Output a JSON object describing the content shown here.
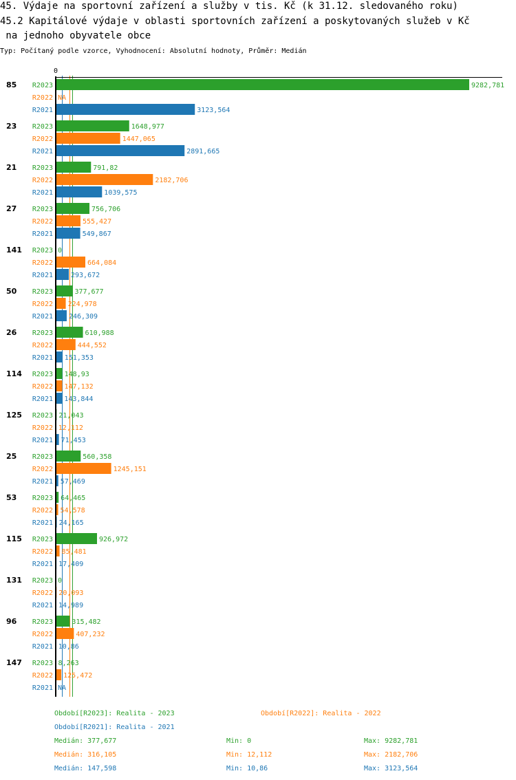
{
  "header": {
    "title_line1": "45. Výdaje na sportovní zařízení a služby v tis. Kč (k 31.12. sledovaného roku)",
    "title_line2": "45.2 Kapitálové výdaje v oblasti sportovních zařízení a poskytovaných služeb v Kč",
    "title_line3": " na jednoho obyvatele obce",
    "subtitle": "Typ: Počítaný podle vzorce, Vyhodnocení: Absolutní hodnoty, Průměr: Medián"
  },
  "colors": {
    "R2023": "#2ca02c",
    "R2022": "#ff7f0e",
    "R2021": "#1f77b4"
  },
  "chart_data": {
    "type": "bar",
    "orientation": "horizontal",
    "axis_zero_label": "0",
    "series_keys": [
      "R2023",
      "R2022",
      "R2021"
    ],
    "groups": [
      {
        "id": "85",
        "values": {
          "R2023": 9282.781,
          "R2022": null,
          "R2021": 3123.564
        },
        "labels": {
          "R2023": "9282,781",
          "R2022": "NA",
          "R2021": "3123,564"
        }
      },
      {
        "id": "23",
        "values": {
          "R2023": 1648.977,
          "R2022": 1447.065,
          "R2021": 2891.665
        },
        "labels": {
          "R2023": "1648,977",
          "R2022": "1447,065",
          "R2021": "2891,665"
        }
      },
      {
        "id": "21",
        "values": {
          "R2023": 791.82,
          "R2022": 2182.706,
          "R2021": 1039.575
        },
        "labels": {
          "R2023": "791,82",
          "R2022": "2182,706",
          "R2021": "1039,575"
        }
      },
      {
        "id": "27",
        "values": {
          "R2023": 756.706,
          "R2022": 555.427,
          "R2021": 549.867
        },
        "labels": {
          "R2023": "756,706",
          "R2022": "555,427",
          "R2021": "549,867"
        }
      },
      {
        "id": "141",
        "values": {
          "R2023": 0,
          "R2022": 664.084,
          "R2021": 293.672
        },
        "labels": {
          "R2023": "0",
          "R2022": "664,084",
          "R2021": "293,672"
        }
      },
      {
        "id": "50",
        "values": {
          "R2023": 377.677,
          "R2022": 224.978,
          "R2021": 246.309
        },
        "labels": {
          "R2023": "377,677",
          "R2022": "224,978",
          "R2021": "246,309"
        }
      },
      {
        "id": "26",
        "values": {
          "R2023": 610.988,
          "R2022": 444.552,
          "R2021": 151.353
        },
        "labels": {
          "R2023": "610,988",
          "R2022": "444,552",
          "R2021": "151,353"
        }
      },
      {
        "id": "114",
        "values": {
          "R2023": 148.93,
          "R2022": 147.132,
          "R2021": 143.844
        },
        "labels": {
          "R2023": "148,93",
          "R2022": "147,132",
          "R2021": "143,844"
        }
      },
      {
        "id": "125",
        "values": {
          "R2023": 21.043,
          "R2022": 12.112,
          "R2021": 71.453
        },
        "labels": {
          "R2023": "21,043",
          "R2022": "12,112",
          "R2021": "71,453"
        }
      },
      {
        "id": "25",
        "values": {
          "R2023": 560.358,
          "R2022": 1245.151,
          "R2021": 57.469
        },
        "labels": {
          "R2023": "560,358",
          "R2022": "1245,151",
          "R2021": "57,469"
        }
      },
      {
        "id": "53",
        "values": {
          "R2023": 64.465,
          "R2022": 54.578,
          "R2021": 24.165
        },
        "labels": {
          "R2023": "64,465",
          "R2022": "54,578",
          "R2021": "24,165"
        }
      },
      {
        "id": "115",
        "values": {
          "R2023": 926.972,
          "R2022": 85.481,
          "R2021": 17.409
        },
        "labels": {
          "R2023": "926,972",
          "R2022": "85,481",
          "R2021": "17,409"
        }
      },
      {
        "id": "131",
        "values": {
          "R2023": 0,
          "R2022": 20.093,
          "R2021": 14.989
        },
        "labels": {
          "R2023": "0",
          "R2022": "20,093",
          "R2021": "14,989"
        }
      },
      {
        "id": "96",
        "values": {
          "R2023": 315.482,
          "R2022": 407.232,
          "R2021": 10.86
        },
        "labels": {
          "R2023": "315,482",
          "R2022": "407,232",
          "R2021": "10,86"
        }
      },
      {
        "id": "147",
        "values": {
          "R2023": 8.263,
          "R2022": 125.472,
          "R2021": null
        },
        "labels": {
          "R2023": "8,263",
          "R2022": "125,472",
          "R2021": "NA"
        }
      }
    ],
    "medians": {
      "R2023": 377.677,
      "R2022": 316.105,
      "R2021": 147.598
    }
  },
  "legend": {
    "R2023": "Období[R2023]: Realita - 2023",
    "R2022": "Období[R2022]: Realita - 2022",
    "R2021": "Období[R2021]: Realita - 2021"
  },
  "stats": [
    {
      "key": "R2023",
      "median": "Medián: 377,677",
      "min": "Min: 0",
      "max": "Max: 9282,781"
    },
    {
      "key": "R2022",
      "median": "Medián: 316,105",
      "min": "Min: 12,112",
      "max": "Max: 2182,706"
    },
    {
      "key": "R2021",
      "median": "Medián: 147,598",
      "min": "Min: 10,86",
      "max": "Max: 3123,564"
    }
  ]
}
